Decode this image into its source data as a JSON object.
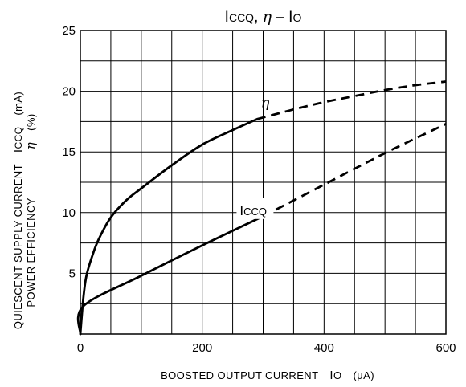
{
  "chart_data": {
    "type": "line",
    "title_parts": [
      "I",
      "CCQ",
      ", ",
      "η",
      " – ",
      "I",
      "O"
    ],
    "xlabel_parts": [
      "BOOSTED OUTPUT CURRENT",
      "I",
      "O",
      "(μA)"
    ],
    "ylabel_line1_parts": [
      "QUIESCENT SUPPLY CURRENT",
      "I",
      "CCQ",
      "(mA)"
    ],
    "ylabel_line2_parts": [
      "POWER EFFICIENCY",
      "η",
      "(%)"
    ],
    "xlim": [
      0,
      600
    ],
    "ylim": [
      0,
      25
    ],
    "xticks": [
      0,
      200,
      400,
      600
    ],
    "yticks": [
      5,
      10,
      15,
      20,
      25
    ],
    "x_grid_step": 50,
    "y_grid_step": 2.5,
    "grid": true,
    "series": [
      {
        "key": "eta",
        "label_parts": [
          "η"
        ],
        "label_at": [
          250,
          18.7
        ],
        "solid": [
          [
            0,
            0
          ],
          [
            5,
            3
          ],
          [
            10,
            4.8
          ],
          [
            20,
            6.5
          ],
          [
            30,
            7.8
          ],
          [
            50,
            9.6
          ],
          [
            75,
            11
          ],
          [
            100,
            12
          ],
          [
            150,
            13.9
          ],
          [
            200,
            15.6
          ],
          [
            250,
            16.8
          ],
          [
            290,
            17.7
          ]
        ],
        "dashed": [
          [
            290,
            17.7
          ],
          [
            350,
            18.5
          ],
          [
            400,
            19.1
          ],
          [
            450,
            19.6
          ],
          [
            500,
            20.1
          ],
          [
            550,
            20.5
          ],
          [
            600,
            20.8
          ]
        ]
      },
      {
        "key": "iccq",
        "label_parts": [
          "I",
          "CCQ"
        ],
        "label_at": [
          230,
          9.8
        ],
        "solid": [
          [
            0,
            0
          ],
          [
            5,
            2.3
          ],
          [
            100,
            4.8
          ],
          [
            200,
            7.3
          ],
          [
            300,
            9.7
          ]
        ],
        "dashed": [
          [
            300,
            9.7
          ],
          [
            400,
            12.3
          ],
          [
            500,
            14.9
          ],
          [
            600,
            17.3
          ]
        ]
      }
    ]
  }
}
